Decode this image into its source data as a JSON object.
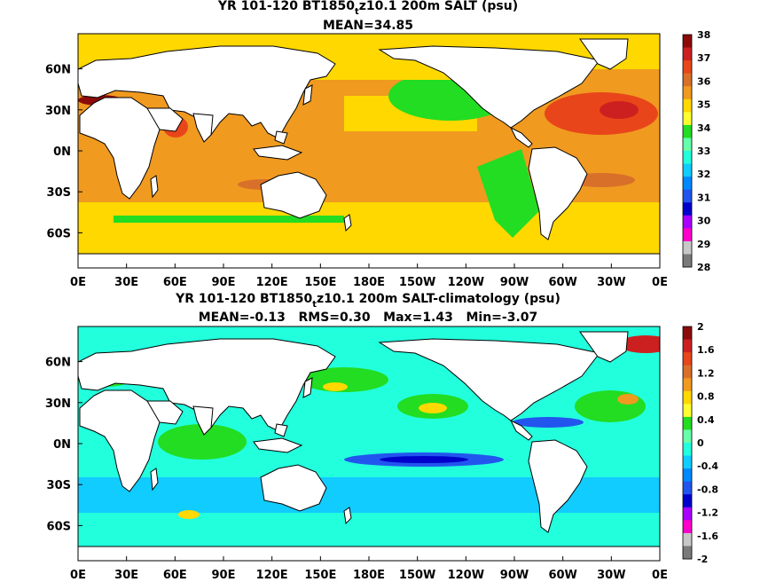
{
  "panels": [
    {
      "title_pre": "YR 101-120 BT1850",
      "title_sub": "t",
      "title_post": "z10.1 200m SALT (psu)",
      "stats": "MEAN=34.85",
      "colorbar": {
        "labels": [
          "38",
          "37",
          "36",
          "35",
          "34",
          "33",
          "32",
          "31",
          "30",
          "29",
          "28"
        ],
        "colors": [
          "#8c0a0a",
          "#cc2020",
          "#e8461a",
          "#d9702a",
          "#f09a20",
          "#ffd800",
          "#ffff30",
          "#22dd22",
          "#66ffaa",
          "#22ffdd",
          "#11ccff",
          "#0088ff",
          "#2255ee",
          "#0000cc",
          "#aa00ff",
          "#ff00cc",
          "#c8c8c8",
          "#7a7a7a"
        ]
      }
    },
    {
      "title_pre": "YR 101-120 BT1850",
      "title_sub": "t",
      "title_post": "z10.1 200m SALT-climatology (psu)",
      "stats": "MEAN=-0.13   RMS=0.30   Max=1.43   Min=-3.07",
      "colorbar": {
        "labels": [
          "2",
          "1.6",
          "1.2",
          "0.8",
          "0.4",
          "0",
          "-0.4",
          "-0.8",
          "-1.2",
          "-1.6",
          "-2"
        ],
        "colors": [
          "#8c0a0a",
          "#cc2020",
          "#e8461a",
          "#d9702a",
          "#f09a20",
          "#ffd800",
          "#ffff30",
          "#22dd22",
          "#66ffaa",
          "#22ffdd",
          "#11ccff",
          "#0088ff",
          "#2255ee",
          "#0000cc",
          "#aa00ff",
          "#ff00cc",
          "#c8c8c8",
          "#7a7a7a"
        ]
      }
    }
  ],
  "xaxis_ticks": [
    "0E",
    "30E",
    "60E",
    "90E",
    "120E",
    "150E",
    "180E",
    "150W",
    "120W",
    "90W",
    "60W",
    "30W",
    "0E"
  ],
  "yaxis_ticks": [
    "60N",
    "30N",
    "0N",
    "30S",
    "60S"
  ],
  "colors": {
    "land": "#ffffff",
    "coastline": "#000000",
    "top_ocean_base": "#f09a20",
    "top_ocean_fresh": "#ffd800",
    "top_ocean_low": "#22dd22",
    "bottom_ocean_base": "#22ffdd",
    "bottom_ocean_pos": "#22dd22",
    "bottom_ocean_neg": "#11ccff"
  }
}
